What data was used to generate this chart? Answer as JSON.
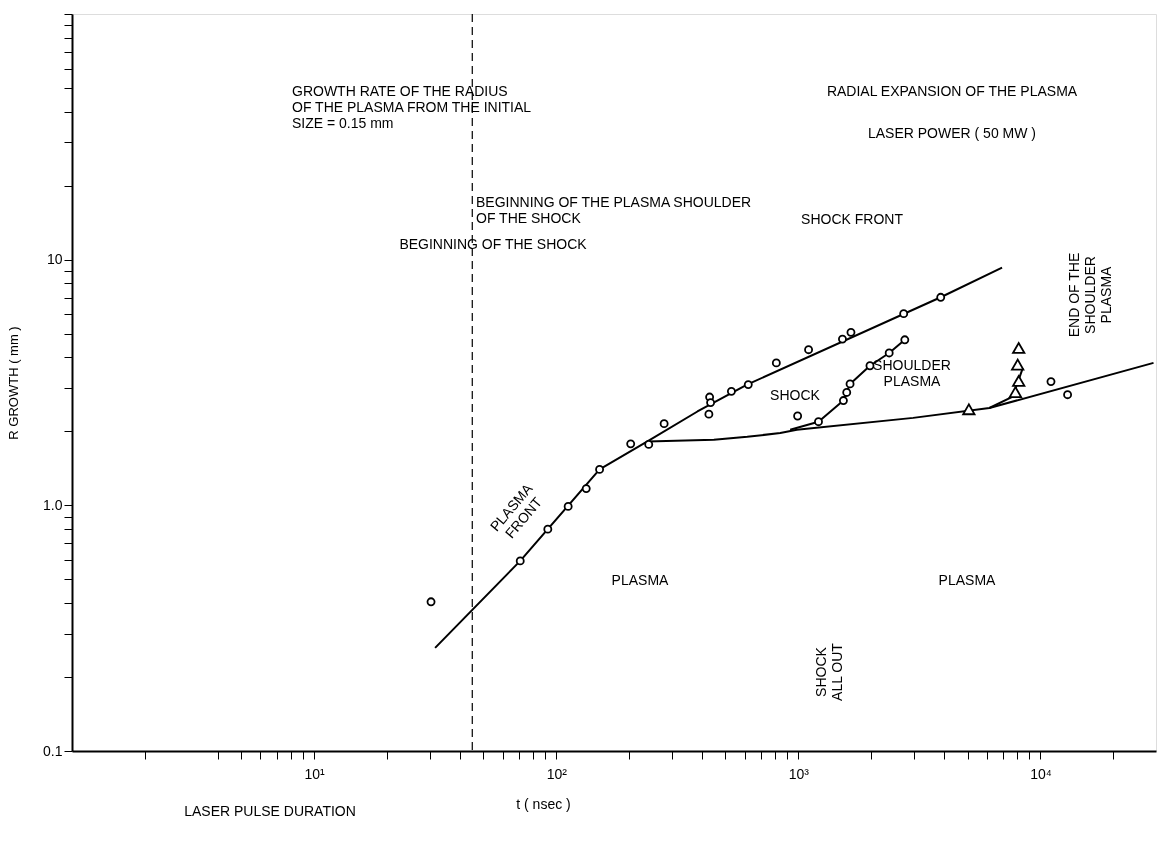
{
  "chart_data": {
    "type": "scatter",
    "title": "RADIAL EXPANSION OF THE PLASMA",
    "subtitle": "LASER POWER ( 50 MW )",
    "xlabel": "t ( nsec )",
    "ylabel": "R GROWTH ( mm )",
    "log": "xy",
    "grid": false,
    "xlim": [
      1,
      30000
    ],
    "ylim": [
      0.1,
      100
    ],
    "xticks": [
      {
        "value": 2,
        "label": null
      },
      {
        "value": 4,
        "label": null
      },
      {
        "value": 5,
        "label": null
      },
      {
        "value": 6,
        "label": null
      },
      {
        "value": 7,
        "label": null
      },
      {
        "value": 8,
        "label": null
      },
      {
        "value": 9,
        "label": null
      },
      {
        "value": 10,
        "label": "10¹"
      },
      {
        "value": 20,
        "label": null
      },
      {
        "value": 30,
        "label": null
      },
      {
        "value": 40,
        "label": null
      },
      {
        "value": 50,
        "label": null
      },
      {
        "value": 60,
        "label": null
      },
      {
        "value": 70,
        "label": null
      },
      {
        "value": 80,
        "label": null
      },
      {
        "value": 90,
        "label": null
      },
      {
        "value": 100,
        "label": "10²"
      },
      {
        "value": 200,
        "label": null
      },
      {
        "value": 300,
        "label": null
      },
      {
        "value": 400,
        "label": null
      },
      {
        "value": 500,
        "label": null
      },
      {
        "value": 600,
        "label": null
      },
      {
        "value": 700,
        "label": null
      },
      {
        "value": 800,
        "label": null
      },
      {
        "value": 900,
        "label": null
      },
      {
        "value": 1000,
        "label": "10³"
      },
      {
        "value": 2000,
        "label": null
      },
      {
        "value": 3000,
        "label": null
      },
      {
        "value": 4000,
        "label": null
      },
      {
        "value": 5000,
        "label": null
      },
      {
        "value": 6000,
        "label": null
      },
      {
        "value": 7000,
        "label": null
      },
      {
        "value": 8000,
        "label": null
      },
      {
        "value": 9000,
        "label": null
      },
      {
        "value": 10000,
        "label": "10⁴"
      },
      {
        "value": 20000,
        "label": null
      }
    ],
    "yticks": [
      0.1,
      {
        "value": 0.2,
        "label": null
      },
      {
        "value": 0.3,
        "label": null
      },
      {
        "value": 0.4,
        "label": null
      },
      {
        "value": 0.5,
        "label": null
      },
      {
        "value": 0.6,
        "label": null
      },
      {
        "value": 0.7,
        "label": null
      },
      {
        "value": 0.8,
        "label": null
      },
      {
        "value": 0.9,
        "label": null
      },
      {
        "value": 1,
        "label": "1.0"
      },
      {
        "value": 2,
        "label": null
      },
      {
        "value": 3,
        "label": null
      },
      {
        "value": 4,
        "label": null
      },
      {
        "value": 5,
        "label": null
      },
      {
        "value": 6,
        "label": null
      },
      {
        "value": 7,
        "label": null
      },
      {
        "value": 8,
        "label": null
      },
      {
        "value": 9,
        "label": null
      },
      10,
      {
        "value": 20,
        "label": null
      },
      {
        "value": 30,
        "label": null
      },
      {
        "value": 40,
        "label": null
      },
      {
        "value": 50,
        "label": null
      },
      {
        "value": 60,
        "label": null
      },
      {
        "value": 70,
        "label": null
      },
      {
        "value": 80,
        "label": null
      },
      {
        "value": 90,
        "label": null
      },
      {
        "value": 100,
        "label": null
      }
    ],
    "series": [
      {
        "type": "line",
        "color": "#000000",
        "marker": "none",
        "line_style": "solid",
        "x": [
          31.6,
          71,
          151,
          238,
          383,
          614,
          3872,
          6940
        ],
        "values": [
          0.263,
          0.594,
          1.4,
          1.82,
          2.41,
          3.1,
          7.03,
          9.28
        ]
      },
      {
        "type": "line",
        "color": "#000000",
        "marker": "none",
        "line_style": "solid",
        "x": [
          238,
          448,
          615,
          842,
          986,
          2979,
          6150,
          29300
        ],
        "values": [
          1.82,
          1.85,
          1.9,
          1.97,
          2.03,
          2.27,
          2.49,
          3.8
        ]
      },
      {
        "type": "line",
        "color": "#000000",
        "marker": "none",
        "line_style": "solid",
        "x": [
          925,
          1211,
          1535,
          1635,
          1976,
          2372,
          2752
        ],
        "values": [
          2.03,
          2.19,
          2.67,
          3.12,
          3.7,
          4.17,
          4.72
        ]
      },
      {
        "type": "line",
        "color": "#000000",
        "marker": "none",
        "line_style": "solid",
        "x": [
          6150,
          7680,
          8450
        ],
        "values": [
          2.49,
          2.77,
          3.62
        ]
      },
      {
        "color": "#000000",
        "marker": "circle",
        "x": [
          30.4,
          71,
          92.3,
          112,
          133,
          151,
          203,
          241,
          279,
          430,
          434,
          427,
          529,
          621,
          811,
          1102,
          1521,
          1649,
          2723,
          3872,
          11050,
          12940
        ],
        "values": [
          0.405,
          0.594,
          0.8,
          0.99,
          1.17,
          1.4,
          1.78,
          1.77,
          2.15,
          2.76,
          2.62,
          2.35,
          2.91,
          3.1,
          3.8,
          4.3,
          4.75,
          5.06,
          6.03,
          7.03,
          3.19,
          2.82
        ]
      },
      {
        "color": "#000000",
        "marker": "circle",
        "x": [
          993,
          1211,
          1535,
          1584,
          1635,
          1976,
          2372,
          2752
        ],
        "values": [
          2.31,
          2.19,
          2.67,
          2.88,
          3.12,
          3.7,
          4.17,
          4.72
        ]
      },
      {
        "color": "#000000",
        "marker": "triangle",
        "x": [
          8130,
          8050,
          8130,
          7880,
          5060
        ],
        "values": [
          4.37,
          3.74,
          3.21,
          2.89,
          2.46
        ]
      }
    ],
    "ref_lines": [
      {
        "axis": "x",
        "value": 45,
        "color": "#000000",
        "line_style": "dashed"
      }
    ],
    "annotations": [
      "PLASMA\nFRONT",
      "BEGINNING OF THE SHOCK",
      "BEGINNING OF THE PLASMA SHOULDER\nOF THE SHOCK",
      "SHOCK FRONT",
      "SHOCK",
      "SHOULDER\nPLASMA",
      "END OF THE\nSHOULDER\nPLASMA",
      "PLASMA",
      "PLASMA",
      "SHOCK\nALL OUT",
      "GROWTH RATE OF THE RADIUS\nOF THE PLASMA FROM THE INITIAL\nSIZE = 0.15 mm",
      "LASER PULSE DURATION"
    ]
  }
}
